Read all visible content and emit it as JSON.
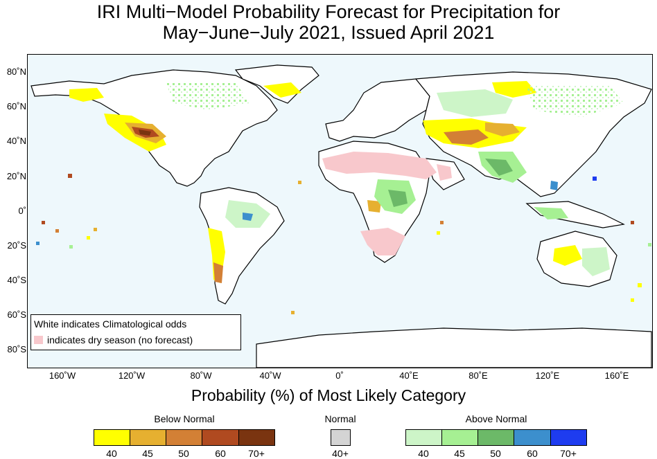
{
  "title_line1": "IRI Multi−Model Probability Forecast for Precipitation for",
  "title_line2": "May−June−July 2021, Issued April 2021",
  "axis_caption": "Probability (%) of Most Likely Category",
  "lat_labels": [
    "80˚N",
    "60˚N",
    "40˚N",
    "20˚N",
    "0˚",
    "20˚S",
    "40˚S",
    "60˚S",
    "80˚S"
  ],
  "lon_labels": [
    "160˚W",
    "120˚W",
    "80˚W",
    "40˚W",
    "0˚",
    "40˚E",
    "80˚E",
    "120˚E",
    "160˚E"
  ],
  "note": {
    "line1": "White indicates Climatological odds",
    "line2": "indicates dry season (no forecast)",
    "dry_color": "#f8c8cc"
  },
  "legend": {
    "below": {
      "title": "Below Normal",
      "labels": [
        "40",
        "45",
        "50",
        "60",
        "70+"
      ],
      "colors": [
        "#ffff00",
        "#e6b030",
        "#d38035",
        "#b04a20",
        "#7a3410"
      ]
    },
    "normal": {
      "title": "Normal",
      "labels": [
        "40+"
      ],
      "colors": [
        "#d4d4d4"
      ]
    },
    "above": {
      "title": "Above Normal",
      "labels": [
        "40",
        "45",
        "50",
        "60",
        "70+"
      ],
      "colors": [
        "#cdf5c8",
        "#a6f093",
        "#6cb968",
        "#3c8fcd",
        "#1e3cf0"
      ]
    }
  },
  "colors": {
    "ocean": "#eef8fc",
    "land": "#ffffff",
    "coast": "#000000"
  }
}
